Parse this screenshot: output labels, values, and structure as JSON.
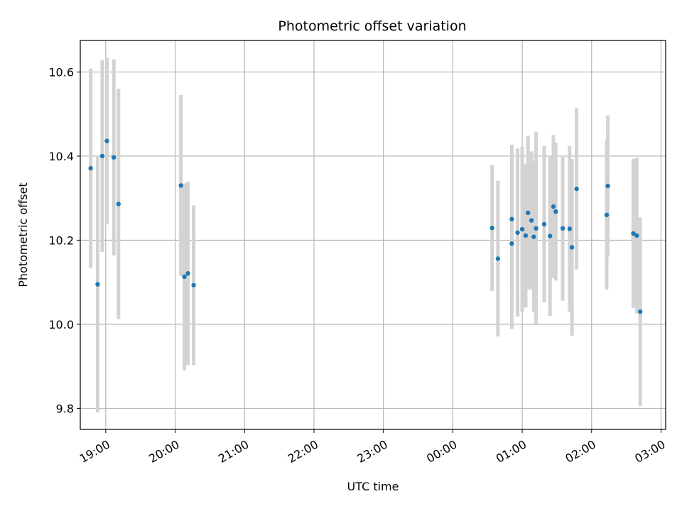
{
  "chart_data": {
    "type": "scatter",
    "title": "Photometric offset variation",
    "xlabel": "UTC time",
    "ylabel": "Photometric offset",
    "xlim": [
      "18:38",
      "03:04"
    ],
    "ylim": [
      9.75,
      10.675
    ],
    "grid": true,
    "x_ticks": [
      "19:00",
      "20:00",
      "21:00",
      "22:00",
      "23:00",
      "00:00",
      "01:00",
      "02:00",
      "03:00"
    ],
    "y_ticks": [
      9.8,
      10.0,
      10.2,
      10.4,
      10.6
    ],
    "colors": {
      "point": "#1f77b4",
      "errorbar": "#d3d3d3",
      "grid": "#b0b0b0"
    },
    "series": [
      {
        "points": [
          {
            "t": "18:47",
            "y": 10.371,
            "err": 0.237
          },
          {
            "t": "18:53",
            "y": 10.095,
            "err": 0.305
          },
          {
            "t": "18:57",
            "y": 10.4,
            "err": 0.228
          },
          {
            "t": "19:01",
            "y": 10.436,
            "err": 0.198
          },
          {
            "t": "19:07",
            "y": 10.397,
            "err": 0.233
          },
          {
            "t": "19:11",
            "y": 10.286,
            "err": 0.274
          },
          {
            "t": "20:05",
            "y": 10.33,
            "err": 0.215
          },
          {
            "t": "20:08",
            "y": 10.113,
            "err": 0.222
          },
          {
            "t": "20:11",
            "y": 10.121,
            "err": 0.218
          },
          {
            "t": "20:16",
            "y": 10.093,
            "err": 0.19
          },
          {
            "t": "00:34",
            "y": 10.229,
            "err": 0.15
          },
          {
            "t": "00:39",
            "y": 10.156,
            "err": 0.185
          },
          {
            "t": "00:51",
            "y": 10.25,
            "err": 0.177
          },
          {
            "t": "00:51",
            "y": 10.192,
            "err": 0.204
          },
          {
            "t": "00:56",
            "y": 10.218,
            "err": 0.2
          },
          {
            "t": "01:00",
            "y": 10.226,
            "err": 0.196
          },
          {
            "t": "01:03",
            "y": 10.211,
            "err": 0.171
          },
          {
            "t": "01:05",
            "y": 10.265,
            "err": 0.183
          },
          {
            "t": "01:08",
            "y": 10.247,
            "err": 0.164
          },
          {
            "t": "01:10",
            "y": 10.208,
            "err": 0.18
          },
          {
            "t": "01:12",
            "y": 10.228,
            "err": 0.23
          },
          {
            "t": "01:19",
            "y": 10.238,
            "err": 0.186
          },
          {
            "t": "01:24",
            "y": 10.21,
            "err": 0.19
          },
          {
            "t": "01:27",
            "y": 10.28,
            "err": 0.17
          },
          {
            "t": "01:29",
            "y": 10.268,
            "err": 0.164
          },
          {
            "t": "01:35",
            "y": 10.228,
            "err": 0.172
          },
          {
            "t": "01:41",
            "y": 10.227,
            "err": 0.197
          },
          {
            "t": "01:43",
            "y": 10.183,
            "err": 0.21
          },
          {
            "t": "01:47",
            "y": 10.322,
            "err": 0.192
          },
          {
            "t": "02:13",
            "y": 10.26,
            "err": 0.177
          },
          {
            "t": "02:14",
            "y": 10.329,
            "err": 0.168
          },
          {
            "t": "02:36",
            "y": 10.216,
            "err": 0.177
          },
          {
            "t": "02:39",
            "y": 10.211,
            "err": 0.185
          },
          {
            "t": "02:42",
            "y": 10.03,
            "err": 0.224
          }
        ]
      }
    ]
  }
}
